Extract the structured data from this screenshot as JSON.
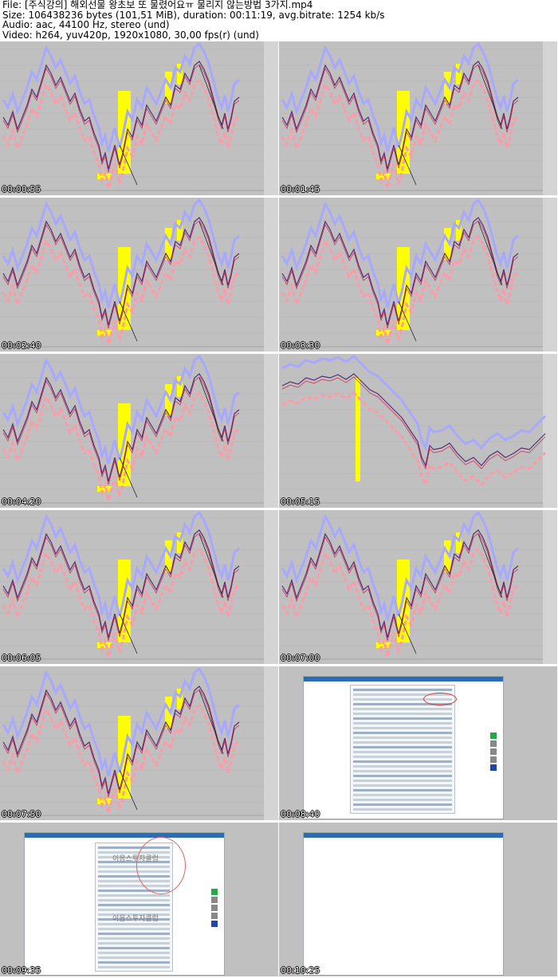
{
  "header": {
    "file": "File: [주식강의] 해외선물 왕초보 또 물렸어요ㅠ 물리지 않는방법 3가지.mp4",
    "size": "Size: 106438236 bytes (101,51 MiB), duration: 00:11:19, avg.bitrate: 1254 kb/s",
    "audio": "Audio: aac, 44100 Hz, stereo (und)",
    "video": "Video: h264, yuv420p, 1920x1080, 30,00 fps(r) (und)"
  },
  "thumbnails": [
    {
      "timestamp": "00:00:55",
      "type": "chart"
    },
    {
      "timestamp": "00:01:45",
      "type": "chart"
    },
    {
      "timestamp": "00:02:40",
      "type": "chart"
    },
    {
      "timestamp": "00:03:30",
      "type": "chart"
    },
    {
      "timestamp": "00:04:20",
      "type": "chart"
    },
    {
      "timestamp": "00:05:15",
      "type": "chart-alt"
    },
    {
      "timestamp": "00:06:05",
      "type": "chart"
    },
    {
      "timestamp": "00:07:00",
      "type": "chart"
    },
    {
      "timestamp": "00:07:50",
      "type": "chart"
    },
    {
      "timestamp": "00:08:40",
      "type": "screen"
    },
    {
      "timestamp": "00:09:35",
      "type": "screen-watermark"
    },
    {
      "timestamp": "00:10:25",
      "type": "screen-blank"
    }
  ],
  "labels": {
    "watermark": "이음스투자클럽"
  },
  "colors": {
    "chart_bg": "#c0c0c0",
    "price_line": "#5a2a7a",
    "upper_band": "#a8a8ff",
    "lower_band": "#ff9aa8",
    "highlight": "#ffff00"
  }
}
